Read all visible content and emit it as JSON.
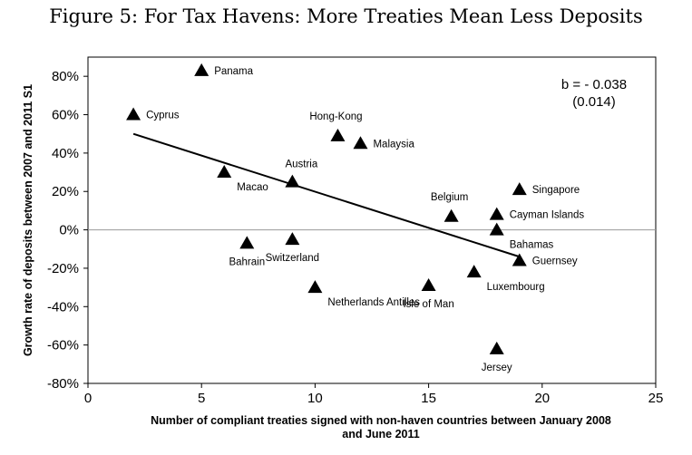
{
  "chart_data": {
    "type": "scatter",
    "title": "Figure 5: For Tax Havens: More Treaties Mean Less Deposits",
    "xlabel_lines": [
      "Number of compliant treaties signed with non-haven countries between January 2008",
      "and June 2011"
    ],
    "ylabel": "Growth rate of deposits between 2007 and 2011 S1",
    "xlim": [
      0,
      25
    ],
    "ylim": [
      -80,
      90
    ],
    "xticks": [
      0,
      5,
      10,
      15,
      20,
      25
    ],
    "yticks": [
      -80,
      -60,
      -40,
      -20,
      0,
      20,
      40,
      60,
      80
    ],
    "ytick_labels": [
      "-80%",
      "-60%",
      "-40%",
      "-20%",
      "0%",
      "20%",
      "40%",
      "60%",
      "80%"
    ],
    "zero_line": true,
    "points": [
      {
        "label": "Panama",
        "x": 5,
        "y": 83,
        "label_pos": "right"
      },
      {
        "label": "Cyprus",
        "x": 2,
        "y": 60,
        "label_pos": "right"
      },
      {
        "label": "Hong-Kong",
        "x": 11,
        "y": 49,
        "label_pos": "above-left"
      },
      {
        "label": "Malaysia",
        "x": 12,
        "y": 45,
        "label_pos": "right"
      },
      {
        "label": "Macao",
        "x": 6,
        "y": 30,
        "label_pos": "below-right"
      },
      {
        "label": "Austria",
        "x": 9,
        "y": 25,
        "label_pos": "above"
      },
      {
        "label": "Singapore",
        "x": 19,
        "y": 21,
        "label_pos": "right"
      },
      {
        "label": "Belgium",
        "x": 16,
        "y": 7,
        "label_pos": "above-left"
      },
      {
        "label": "Cayman Islands",
        "x": 18,
        "y": 8,
        "label_pos": "right"
      },
      {
        "label": "Bahamas",
        "x": 18,
        "y": 0,
        "label_pos": "below-right"
      },
      {
        "label": "Bahrain",
        "x": 7,
        "y": -7,
        "label_pos": "below"
      },
      {
        "label": "Switzerland",
        "x": 9,
        "y": -5,
        "label_pos": "below"
      },
      {
        "label": "Guernsey",
        "x": 19,
        "y": -16,
        "label_pos": "right"
      },
      {
        "label": "Luxembourg",
        "x": 17,
        "y": -22,
        "label_pos": "below-right"
      },
      {
        "label": "Isle of Man",
        "x": 15,
        "y": -29,
        "label_pos": "below"
      },
      {
        "label": "Netherlands Antilles",
        "x": 10,
        "y": -30,
        "label_pos": "below-right"
      },
      {
        "label": "Jersey",
        "x": 18,
        "y": -62,
        "label_pos": "below"
      }
    ],
    "fit_line": {
      "x": [
        2,
        19
      ],
      "y": [
        50,
        -14
      ]
    },
    "annotation": [
      "b = - 0.038",
      "(0.014)"
    ]
  }
}
